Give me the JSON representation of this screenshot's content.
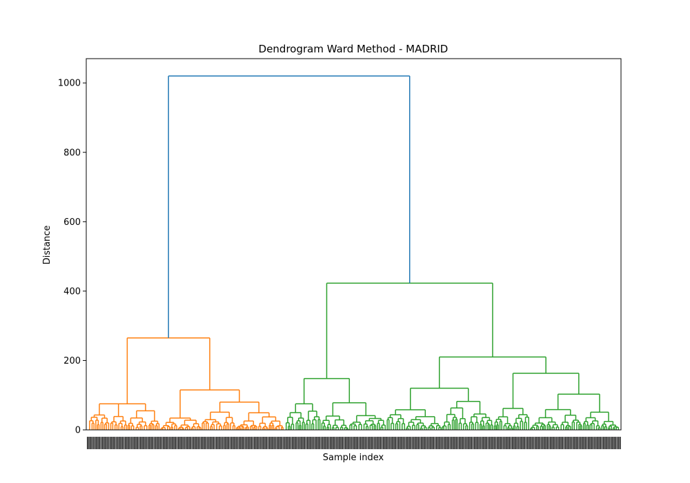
{
  "chart_data": {
    "type": "dendrogram",
    "title": "Dendrogram Ward Method - MADRID",
    "xlabel": "Sample index",
    "ylabel": "Distance",
    "ylim": [
      0,
      1070
    ],
    "yticks": [
      0,
      200,
      400,
      600,
      800,
      1000
    ],
    "grid": false,
    "colors": {
      "root": "#1f77b4",
      "cluster_1": "#ff7f0e",
      "cluster_2": "#2ca02c"
    },
    "merge_heights": {
      "root": 1020,
      "cluster_1": 265,
      "cluster_2": 423,
      "cluster_1_left": 75,
      "cluster_1_right": 115,
      "cluster_2_left": 148,
      "cluster_2_right": 210,
      "cluster_2_right_left": 120,
      "cluster_2_right_right": 163
    }
  }
}
